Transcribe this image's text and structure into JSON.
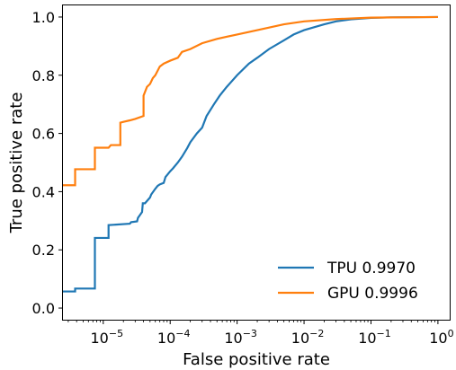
{
  "chart_data": {
    "type": "line",
    "xlabel": "False positive rate",
    "ylabel": "True positive rate",
    "xscale": "log",
    "xlim": [
      2.5e-06,
      1.5
    ],
    "ylim": [
      -0.04,
      1.04
    ],
    "grid": false,
    "legend_position": "bottom-right",
    "x_ticks": [
      {
        "value": 1e-05,
        "base": "10",
        "exp": "−5"
      },
      {
        "value": 0.0001,
        "base": "10",
        "exp": "−4"
      },
      {
        "value": 0.001,
        "base": "10",
        "exp": "−3"
      },
      {
        "value": 0.01,
        "base": "10",
        "exp": "−2"
      },
      {
        "value": 0.1,
        "base": "10",
        "exp": "−1"
      },
      {
        "value": 1,
        "base": "10",
        "exp": "0"
      }
    ],
    "y_ticks": [
      {
        "value": 0.0,
        "label": "0.0"
      },
      {
        "value": 0.2,
        "label": "0.2"
      },
      {
        "value": 0.4,
        "label": "0.4"
      },
      {
        "value": 0.6,
        "label": "0.6"
      },
      {
        "value": 0.8,
        "label": "0.8"
      },
      {
        "value": 1.0,
        "label": "1.0"
      }
    ],
    "series": [
      {
        "name": "TPU 0.9970",
        "color": "#1f77b4",
        "x": [
          2.5e-06,
          3.8e-06,
          3.8e-06,
          7.5e-06,
          7.5e-06,
          1.2e-05,
          1.2e-05,
          2.5e-05,
          2.6e-05,
          3.2e-05,
          3.3e-05,
          3.8e-05,
          3.9e-05,
          4.2e-05,
          5e-05,
          5.2e-05,
          6e-05,
          6.5e-05,
          7e-05,
          8e-05,
          8.5e-05,
          0.0001,
          0.00011,
          0.00013,
          0.00015,
          0.00018,
          0.0002,
          0.00025,
          0.0003,
          0.00035,
          0.00045,
          0.00055,
          0.0007,
          0.001,
          0.0015,
          0.002,
          0.003,
          0.005,
          0.007,
          0.01,
          0.02,
          0.03,
          0.05,
          0.1,
          0.2,
          1.0
        ],
        "y": [
          0.057,
          0.057,
          0.067,
          0.067,
          0.241,
          0.241,
          0.285,
          0.29,
          0.295,
          0.298,
          0.31,
          0.33,
          0.36,
          0.36,
          0.38,
          0.39,
          0.41,
          0.42,
          0.425,
          0.43,
          0.45,
          0.47,
          0.48,
          0.5,
          0.52,
          0.55,
          0.57,
          0.6,
          0.62,
          0.66,
          0.7,
          0.73,
          0.76,
          0.8,
          0.84,
          0.86,
          0.89,
          0.92,
          0.94,
          0.955,
          0.975,
          0.985,
          0.992,
          0.997,
          0.999,
          1.0
        ]
      },
      {
        "name": "GPU 0.9996",
        "color": "#ff7f0e",
        "x": [
          2.5e-06,
          3.8e-06,
          3.8e-06,
          7.5e-06,
          7.5e-06,
          1.2e-05,
          1.3e-05,
          1.8e-05,
          1.8e-05,
          2e-05,
          2.5e-05,
          3e-05,
          4e-05,
          4e-05,
          4.5e-05,
          5e-05,
          5.5e-05,
          6e-05,
          7e-05,
          8e-05,
          0.0001,
          0.00013,
          0.00015,
          0.0002,
          0.0003,
          0.0005,
          0.001,
          0.002,
          0.005,
          0.01,
          0.03,
          0.1,
          1.0
        ],
        "y": [
          0.422,
          0.422,
          0.477,
          0.477,
          0.551,
          0.551,
          0.56,
          0.56,
          0.637,
          0.64,
          0.645,
          0.65,
          0.66,
          0.73,
          0.76,
          0.77,
          0.79,
          0.8,
          0.83,
          0.84,
          0.85,
          0.86,
          0.88,
          0.89,
          0.91,
          0.925,
          0.94,
          0.955,
          0.975,
          0.985,
          0.993,
          0.998,
          1.0
        ]
      }
    ]
  }
}
